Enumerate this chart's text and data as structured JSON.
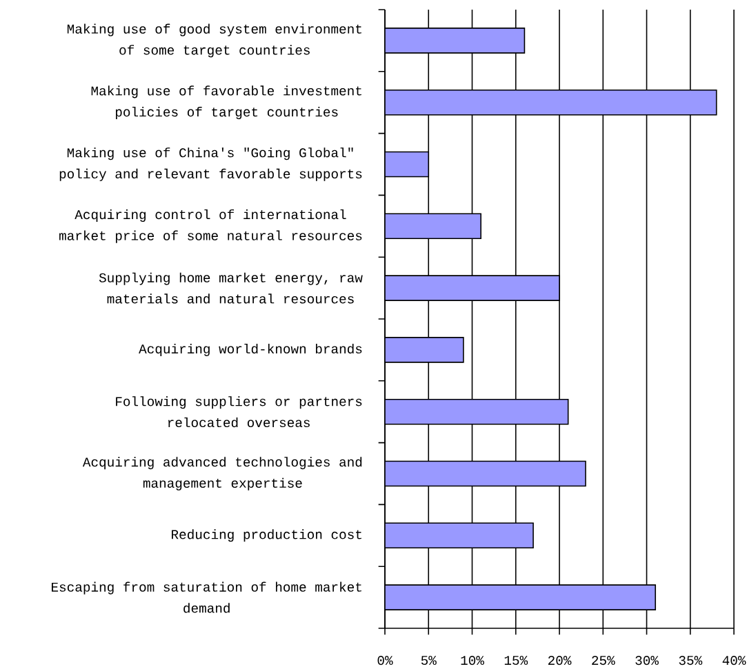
{
  "chart_data": {
    "type": "bar",
    "orientation": "horizontal",
    "categories": [
      "Making use of good system environment of some target countries",
      "Making use of favorable investment policies of target countries",
      "Making use of China's \"Going Global\" policy and relevant favorable supports",
      "Acquiring control of international market price of some natural resources",
      "Supplying home market energy, raw materials and natural resources",
      "Acquiring world-known brands",
      "Following suppliers or partners relocated overseas",
      "Acquiring advanced technologies and management expertise",
      "Reducing production cost",
      "Escaping from saturation of home market demand"
    ],
    "values": [
      16,
      38,
      5,
      11,
      20,
      9,
      21,
      23,
      17,
      31
    ],
    "color": "#9999ff",
    "xlim": [
      0,
      40
    ],
    "xticks": [
      {
        "value": 0,
        "label": "0%"
      },
      {
        "value": 5,
        "label": "5%"
      },
      {
        "value": 10,
        "label": "10%"
      },
      {
        "value": 15,
        "label": "15%"
      },
      {
        "value": 20,
        "label": "20%"
      },
      {
        "value": 25,
        "label": "25%"
      },
      {
        "value": 30,
        "label": "30%"
      },
      {
        "value": 35,
        "label": "35%"
      },
      {
        "value": 40,
        "label": "40%"
      }
    ],
    "grid": "x"
  }
}
